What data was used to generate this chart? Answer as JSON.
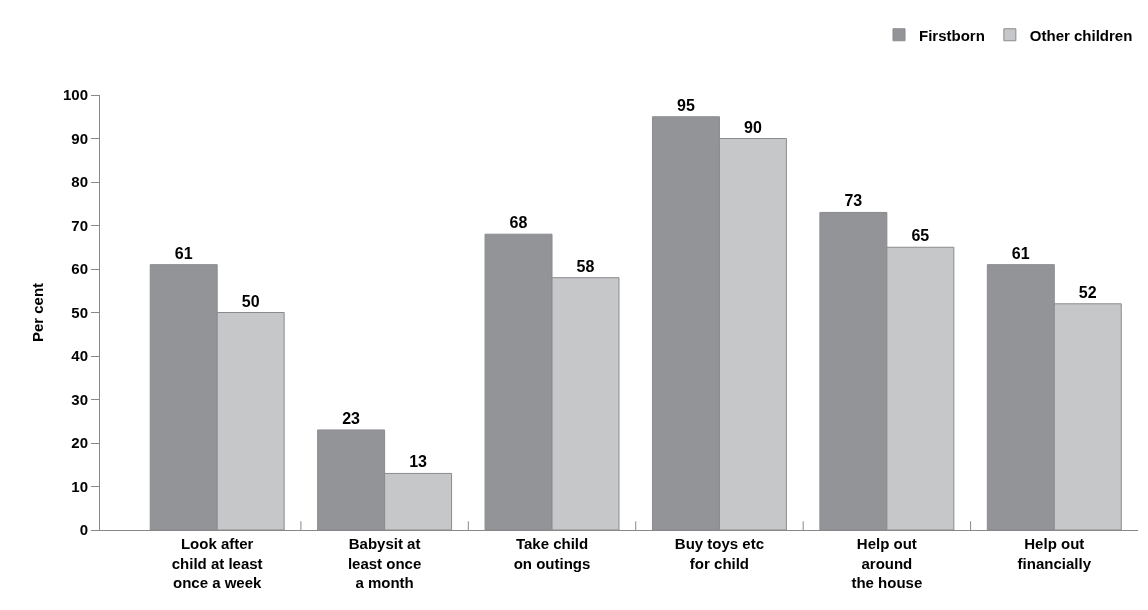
{
  "chart_data": {
    "type": "bar",
    "ylabel": "Per cent",
    "categories": [
      "Look after\nchild at least\nonce a week",
      "Babysit at\nleast once\na month",
      "Take child\non outings",
      "Buy toys etc\nfor child",
      "Help out\naround\nthe house",
      "Help out\nfinancially"
    ],
    "series": [
      {
        "name": "Firstborn",
        "color": "#939498",
        "values": [
          61,
          23,
          68,
          95,
          73,
          61
        ]
      },
      {
        "name": "Other children",
        "color": "#c6c7c9",
        "values": [
          50,
          13,
          58,
          90,
          65,
          52
        ]
      }
    ],
    "ylim": [
      0,
      100
    ],
    "yticks": [
      0,
      10,
      20,
      30,
      40,
      50,
      60,
      70,
      80,
      90,
      100
    ],
    "data_labels": true,
    "legend": "top right"
  }
}
